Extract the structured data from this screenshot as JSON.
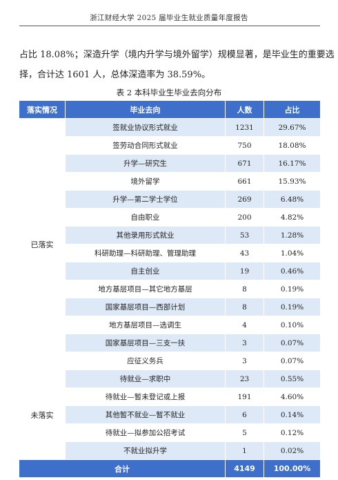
{
  "header": {
    "title": "浙江财经大学 2025 届毕业生就业质量年度报告"
  },
  "body_text": {
    "line1": "占比 18.08%；深造升学（境内升学与境外留学）规模显著，是毕业生的重要选",
    "line2": "择，合计达 1601 人，总体深造率为 38.59%。"
  },
  "table": {
    "caption": "表 2  本科毕业生毕业去向分布",
    "headers": [
      "落实情况",
      "毕业去向",
      "人数",
      "占比"
    ],
    "groups": [
      {
        "status": "已落实",
        "rows": [
          {
            "destination": "签就业协议形式就业",
            "count": "1231",
            "share": "29.67%"
          },
          {
            "destination": "签劳动合同形式就业",
            "count": "750",
            "share": "18.08%"
          },
          {
            "destination": "升学—研究生",
            "count": "671",
            "share": "16.17%"
          },
          {
            "destination": "境外留学",
            "count": "661",
            "share": "15.93%"
          },
          {
            "destination": "升学—第二学士学位",
            "count": "269",
            "share": "6.48%"
          },
          {
            "destination": "自由职业",
            "count": "200",
            "share": "4.82%"
          },
          {
            "destination": "其他录用形式就业",
            "count": "53",
            "share": "1.28%"
          },
          {
            "destination": "科研助理—科研助理、管理助理",
            "count": "43",
            "share": "1.04%"
          },
          {
            "destination": "自主创业",
            "count": "19",
            "share": "0.46%"
          },
          {
            "destination": "地方基层项目—其它地方基层",
            "count": "8",
            "share": "0.19%"
          },
          {
            "destination": "国家基层项目—西部计划",
            "count": "8",
            "share": "0.19%"
          },
          {
            "destination": "地方基层项目—选调生",
            "count": "4",
            "share": "0.10%"
          },
          {
            "destination": "国家基层项目—三支一扶",
            "count": "3",
            "share": "0.07%"
          },
          {
            "destination": "应征义务兵",
            "count": "3",
            "share": "0.07%"
          }
        ]
      },
      {
        "status": "未落实",
        "rows": [
          {
            "destination": "待就业—求职中",
            "count": "23",
            "share": "0.55%"
          },
          {
            "destination": "待就业—暂未登记或上报",
            "count": "191",
            "share": "4.60%"
          },
          {
            "destination": "其他暂不就业—暂不就业",
            "count": "6",
            "share": "0.14%"
          },
          {
            "destination": "待就业—拟参加公招考试",
            "count": "5",
            "share": "0.12%"
          },
          {
            "destination": "不就业拟升学",
            "count": "1",
            "share": "0.02%"
          }
        ]
      }
    ],
    "total": {
      "label": "合计",
      "count": "4149",
      "share": "100.00%"
    }
  }
}
